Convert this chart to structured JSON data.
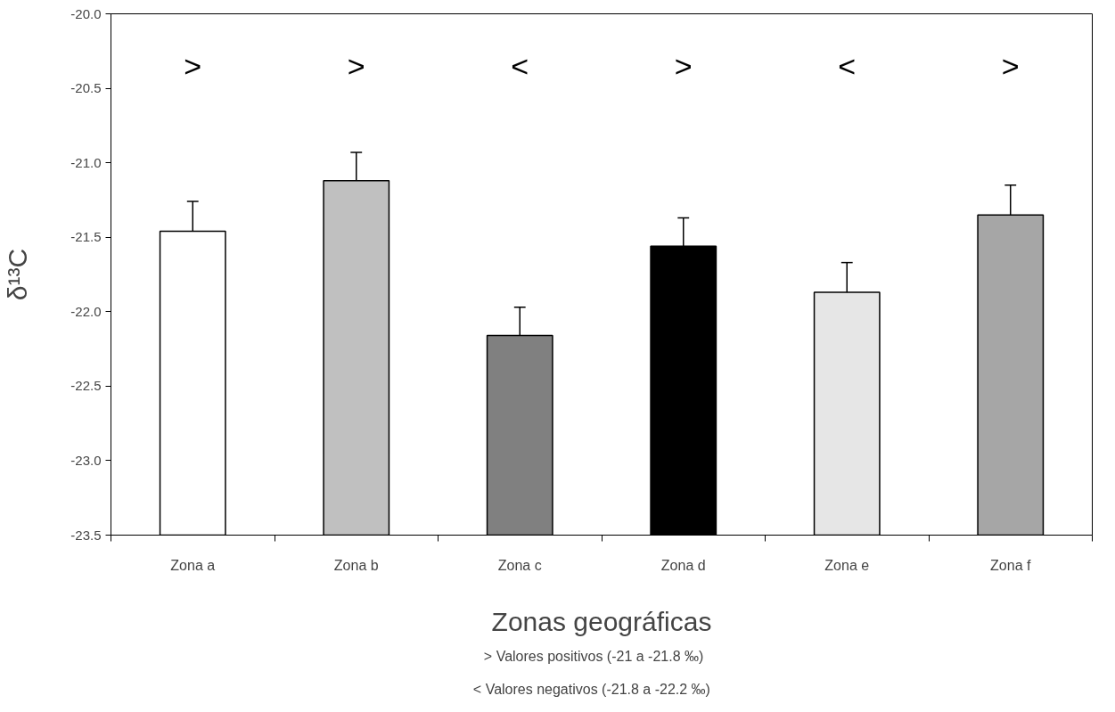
{
  "chart_data": {
    "type": "bar",
    "xlabel": "Zonas geográficas",
    "ylabel": "δ¹³C",
    "categories": [
      "Zona a",
      "Zona b",
      "Zona c",
      "Zona d",
      "Zona e",
      "Zona f"
    ],
    "base": [
      -23.5,
      -23.5,
      -23.5,
      -23.5,
      -23.5,
      -23.5
    ],
    "values": [
      2.04,
      2.38,
      1.34,
      1.94,
      1.63,
      2.15
    ],
    "colors": [
      "#ffffff",
      "#c0c0c0",
      "#808080",
      "#000000",
      "#e6e6e6",
      "#a6a6a6"
    ],
    "errors": [
      [
        -21.46,
        -21.26
      ],
      [
        -21.12,
        -20.93
      ],
      [
        -22.16,
        -21.97
      ],
      [
        -21.56,
        -21.37
      ],
      [
        -21.87,
        -21.67
      ],
      [
        -21.35,
        -21.15
      ]
    ],
    "ylim": [
      -23.5,
      -20.0
    ],
    "yticks": [
      {
        "value": -23.5,
        "label": "-23.5"
      },
      {
        "value": -23.0,
        "label": "-23.0"
      },
      {
        "value": -22.5,
        "label": "-22.5"
      },
      {
        "value": -22.0,
        "label": "-22.0"
      },
      {
        "value": -21.5,
        "label": "-21.5"
      },
      {
        "value": -21.0,
        "label": "-21.0"
      },
      {
        "value": -20.5,
        "label": "-20.5"
      },
      {
        "value": -20.0,
        "label": "-20.0"
      }
    ],
    "grid": false,
    "annotations": [
      ">",
      ">",
      "<",
      ">",
      "<",
      ">",
      ">     Valores positivos (-21 a -21.8 ‰)",
      "<      Valores negativos (-21.8 a -22.2 ‰)"
    ]
  }
}
